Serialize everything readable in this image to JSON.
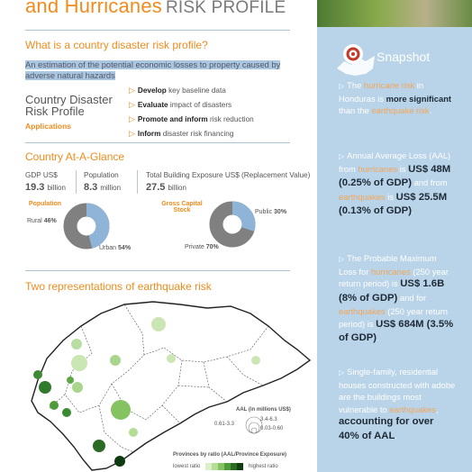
{
  "header": {
    "title_highlight": "and Hurricanes",
    "title_suffix": "RISK PROFILE"
  },
  "what_is": {
    "question": "What is a country disaster risk profile?",
    "definition": "An estimation of the potential economic losses to property caused by adverse natural hazards"
  },
  "cdrp": {
    "title": "Country Disaster Risk Profile",
    "applications_label": "Applications",
    "items": [
      {
        "bold": "Develop",
        "rest": "key baseline data"
      },
      {
        "bold": "Evaluate",
        "rest": "impact of disasters"
      },
      {
        "bold": "Promote and inform",
        "rest": "risk reduction"
      },
      {
        "bold": "Inform",
        "rest": "disaster risk financing"
      }
    ]
  },
  "at_a_glance": {
    "title": "Country At-A-Glance",
    "stats": [
      {
        "label": "GDP US$",
        "value": "19.3",
        "unit": "billion"
      },
      {
        "label": "Population",
        "value": "8.3",
        "unit": "million"
      },
      {
        "label": "Total Building Exposure US$ (Replacement Value)",
        "value": "27.5",
        "unit": "billion"
      }
    ],
    "population_donut": {
      "title": "Population",
      "rural_label": "Rural",
      "rural_value": "46%",
      "urban_label": "Urban",
      "urban_value": "54%",
      "rural_pct": 46,
      "colors": {
        "rural": "#8eb4d8",
        "urban": "#808080"
      }
    },
    "stock_donut": {
      "title": "Gross Capital Stock",
      "public_label": "Public",
      "public_value": "30%",
      "private_label": "Private",
      "private_value": "70%",
      "public_pct": 30,
      "colors": {
        "public": "#8eb4d8",
        "private": "#808080"
      }
    }
  },
  "earthquake": {
    "title": "Two representations of earthquake risk",
    "legend": {
      "aal_title": "AAL (in millions US$)",
      "aal_small": "0.61-3.3",
      "aal_mid": "3.4-6.3",
      "aal_low": "0.03-0.60",
      "provinces_title": "Provinces by ratio (AAL/Province Exposure)",
      "lowest": "lowest ratio",
      "highest": "highest ratio",
      "ramp_colors": [
        "#d9f0c8",
        "#b4dd96",
        "#84c262",
        "#4f9a3a",
        "#2b6b24",
        "#123f12"
      ]
    }
  },
  "snapshot": {
    "title": "Snapshot",
    "p1": {
      "a": "The ",
      "kw1": "hurricane risk",
      "b": " in Honduras is ",
      "bold": "more significant",
      "c": " than the ",
      "kw2": "earthquake risk",
      "d": "."
    },
    "p2": {
      "a": "Annual Average Loss (AAL) from ",
      "kw1": "hurricanes",
      "b": " is ",
      "bold1": "US$ 48M (0.25% of GDP)",
      "c": " and from ",
      "kw2": "earthquakes",
      "d": " is ",
      "bold2": "US$ 25.5M (0.13% of GDP)",
      "e": "."
    },
    "p3": {
      "a": "The Probable Maximum Loss for ",
      "kw1": "hurricanes",
      "b": " (250 year return period) is ",
      "bold1": "US$ 1.6B (8% of GDP)",
      "c": " and for ",
      "kw2": "earthquakes",
      "d": " (250 year return period) is ",
      "bold2": "US$ 684M (3.5% of GDP)",
      "e": "."
    },
    "p4": {
      "a": "Single-family, residential houses constructed with adobe are the buildings most vulnerable to ",
      "kw1": "earthquakes",
      "b": ", ",
      "bold": "accounting for over 40% of AAL",
      "c": "."
    }
  },
  "colors": {
    "accent": "#f08c1e",
    "sidebar": "#b9d3e8",
    "rule": "#a9c2d6"
  }
}
